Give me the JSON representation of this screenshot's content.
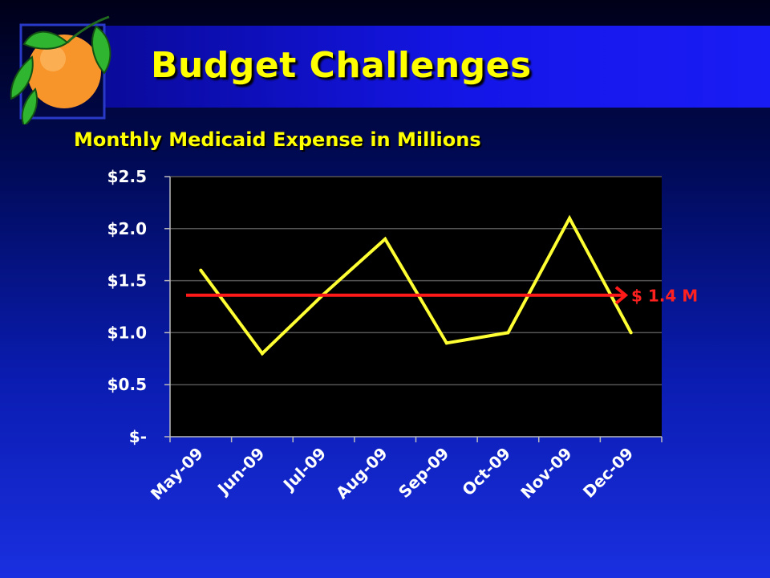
{
  "slide": {
    "title": "Budget Challenges",
    "logo_icon": "orange-with-leaves-icon"
  },
  "chart_data": {
    "type": "line",
    "title": "Monthly Medicaid Expense in Millions",
    "categories": [
      "May-09",
      "Jun-09",
      "Jul-09",
      "Aug-09",
      "Sep-09",
      "Oct-09",
      "Nov-09",
      "Dec-09"
    ],
    "series": [
      {
        "values": [
          1.6,
          0.8,
          1.37,
          1.9,
          0.9,
          1.0,
          2.1,
          1.0
        ]
      }
    ],
    "y_ticks": [
      {
        "value": 2.5,
        "label": "$2.5"
      },
      {
        "value": 2.0,
        "label": "$2.0"
      },
      {
        "value": 1.5,
        "label": "$1.5"
      },
      {
        "value": 1.0,
        "label": "$1.0"
      },
      {
        "value": 0.5,
        "label": "$0.5"
      },
      {
        "value": 0,
        "label": "$-"
      }
    ],
    "ylim": [
      0,
      2.5
    ],
    "grid": true,
    "reference_line": {
      "value": 1.36,
      "label": "$ 1.4 M"
    },
    "colors": {
      "series": "#ffff33",
      "reference": "#ff1a1a",
      "plot_background": "#000000",
      "grid": "#555555"
    }
  }
}
